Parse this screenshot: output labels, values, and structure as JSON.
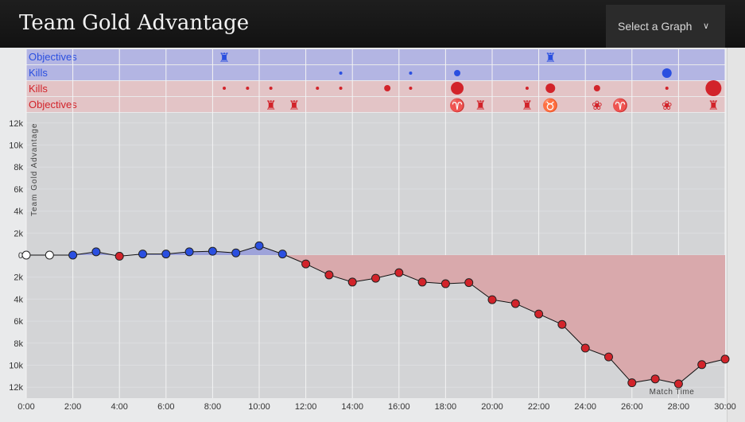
{
  "header": {
    "title": "Team Gold Advantage",
    "select_label": "Select a Graph",
    "select_icon": "chevron-down-icon"
  },
  "rows": [
    {
      "label": "Objectives",
      "team": "blue"
    },
    {
      "label": "Kills",
      "team": "blue"
    },
    {
      "label": "Kills",
      "team": "red"
    },
    {
      "label": "Objectives",
      "team": "red"
    }
  ],
  "colors": {
    "blue": "#2a4fe0",
    "red": "#d2232a",
    "blue_row": "#b3b5e3",
    "red_row": "#e3c4c6",
    "plot_bg": "#d3d4d6",
    "red_area": "#d9a9ac",
    "blue_area": "#9ea3da"
  },
  "events": {
    "blue_objectives": [
      {
        "t": 8.5,
        "icon": "tower"
      },
      {
        "t": 22.5,
        "icon": "tower"
      }
    ],
    "blue_kills": [
      {
        "t": 13.5,
        "n": 1
      },
      {
        "t": 16.5,
        "n": 1
      },
      {
        "t": 18.5,
        "n": 2
      },
      {
        "t": 27.5,
        "n": 3
      }
    ],
    "red_kills": [
      {
        "t": 8.5,
        "n": 1
      },
      {
        "t": 9.5,
        "n": 1
      },
      {
        "t": 10.5,
        "n": 1
      },
      {
        "t": 12.5,
        "n": 1
      },
      {
        "t": 13.5,
        "n": 1
      },
      {
        "t": 15.5,
        "n": 2
      },
      {
        "t": 16.5,
        "n": 1
      },
      {
        "t": 18.5,
        "n": 4
      },
      {
        "t": 21.5,
        "n": 1
      },
      {
        "t": 22.5,
        "n": 3
      },
      {
        "t": 24.5,
        "n": 2
      },
      {
        "t": 27.5,
        "n": 1
      },
      {
        "t": 29.5,
        "n": 5
      }
    ],
    "red_objectives": [
      {
        "t": 10.5,
        "icon": "tower"
      },
      {
        "t": 11.5,
        "icon": "tower"
      },
      {
        "t": 18.5,
        "icon": "dragon"
      },
      {
        "t": 19.5,
        "icon": "tower"
      },
      {
        "t": 21.5,
        "icon": "tower"
      },
      {
        "t": 22.5,
        "icon": "baron"
      },
      {
        "t": 24.5,
        "icon": "inhibitor"
      },
      {
        "t": 25.5,
        "icon": "dragon"
      },
      {
        "t": 27.5,
        "icon": "inhibitor"
      },
      {
        "t": 29.5,
        "icon": "tower"
      }
    ]
  },
  "chart_data": {
    "type": "area",
    "title": "Team Gold Advantage",
    "xlabel": "Match Time",
    "ylabel": "Team Gold Advantage",
    "xlim": [
      0,
      30
    ],
    "ylim": [
      -12000,
      12000
    ],
    "x_ticks": [
      "0:00",
      "2:00",
      "4:00",
      "6:00",
      "8:00",
      "10:00",
      "12:00",
      "14:00",
      "16:00",
      "18:00",
      "20:00",
      "22:00",
      "24:00",
      "26:00",
      "28:00",
      "30:00"
    ],
    "y_ticks": [
      "12k",
      "10k",
      "8k",
      "6k",
      "4k",
      "2k",
      "0",
      "2k",
      "4k",
      "6k",
      "8k",
      "10k",
      "12k"
    ],
    "y_tick_values": [
      12000,
      10000,
      8000,
      6000,
      4000,
      2000,
      0,
      -2000,
      -4000,
      -6000,
      -8000,
      -10000,
      -12000
    ],
    "x": [
      0,
      1,
      2,
      3,
      4,
      5,
      6,
      7,
      8,
      9,
      10,
      11,
      12,
      13,
      14,
      15,
      16,
      17,
      18,
      19,
      20,
      21,
      22,
      23,
      24,
      25,
      26,
      27,
      28,
      29,
      30
    ],
    "values": [
      0,
      0,
      0,
      300,
      -100,
      100,
      100,
      300,
      350,
      200,
      850,
      100,
      -800,
      -1800,
      -2450,
      -2100,
      -1600,
      -2450,
      -2600,
      -2500,
      -4050,
      -4400,
      -5350,
      -6300,
      -8450,
      -9250,
      -11600,
      -11250,
      -11700,
      -9950,
      -9450
    ],
    "grid": true
  }
}
